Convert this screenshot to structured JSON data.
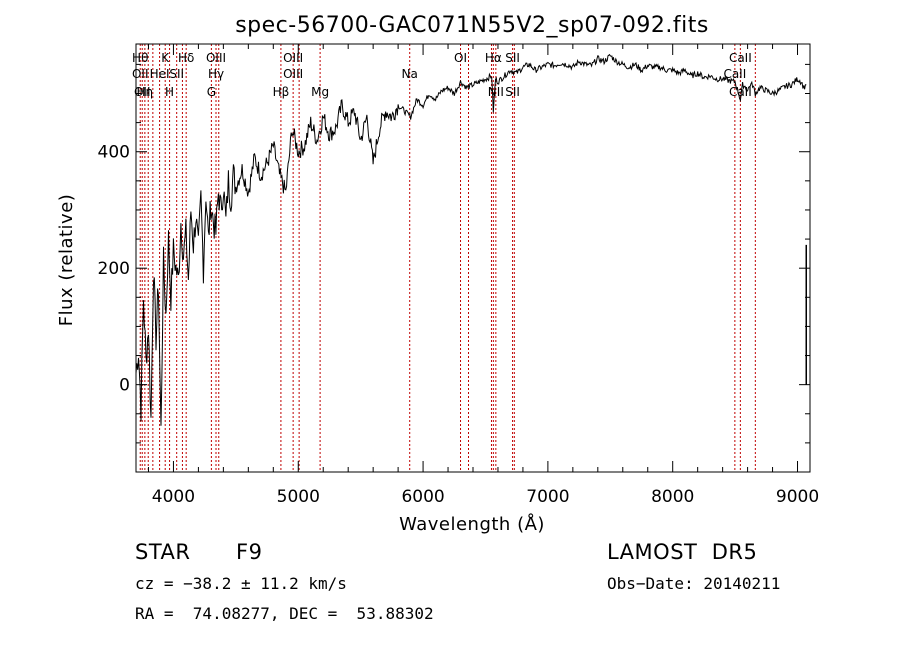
{
  "chart_data": {
    "type": "line",
    "title": "spec-56700-GAC071N55V2_sp07-092.fits",
    "xlabel": "Wavelength (Å)",
    "ylabel": "Flux (relative)",
    "xlim": [
      3700,
      9100
    ],
    "ylim": [
      -150,
      585
    ],
    "xticks": [
      4000,
      5000,
      6000,
      7000,
      8000,
      9000
    ],
    "yticks": [
      0,
      200,
      400
    ],
    "grid": false,
    "series": [
      {
        "x": [
          3700,
          3720,
          3740,
          3760,
          3780,
          3800,
          3820,
          3840,
          3860,
          3880,
          3900,
          3920,
          3940,
          3960,
          3980,
          4000,
          4020,
          4040,
          4060,
          4080,
          4100,
          4120,
          4140,
          4160,
          4180,
          4200,
          4220,
          4240,
          4260,
          4280,
          4300,
          4320,
          4340,
          4360,
          4380,
          4400,
          4420,
          4440,
          4460,
          4480,
          4500,
          4550,
          4600,
          4650,
          4700,
          4750,
          4800,
          4850,
          4900,
          4950,
          5000,
          5050,
          5100,
          5150,
          5200,
          5250,
          5300,
          5350,
          5400,
          5450,
          5500,
          5550,
          5600,
          5650,
          5700,
          5750,
          5800,
          5850,
          5900,
          5950,
          6000,
          6050,
          6100,
          6150,
          6200,
          6250,
          6300,
          6350,
          6400,
          6450,
          6500,
          6550,
          6563,
          6580,
          6600,
          6650,
          6700,
          6750,
          6800,
          6850,
          6900,
          6950,
          7000,
          7050,
          7100,
          7150,
          7200,
          7250,
          7300,
          7350,
          7400,
          7450,
          7500,
          7550,
          7600,
          7650,
          7700,
          7750,
          7800,
          7850,
          7900,
          7950,
          8000,
          8050,
          8100,
          8150,
          8200,
          8250,
          8300,
          8350,
          8400,
          8450,
          8500,
          8542,
          8560,
          8580,
          8600,
          8620,
          8640,
          8662,
          8700,
          8750,
          8800,
          8850,
          8900,
          8950,
          9000,
          9030,
          9050,
          9070
        ],
        "values": [
          20,
          60,
          -40,
          150,
          40,
          100,
          -60,
          200,
          80,
          170,
          -80,
          210,
          120,
          250,
          150,
          230,
          200,
          180,
          280,
          220,
          260,
          180,
          300,
          240,
          290,
          230,
          320,
          200,
          330,
          250,
          310,
          280,
          260,
          330,
          300,
          340,
          280,
          350,
          320,
          360,
          340,
          370,
          330,
          390,
          360,
          380,
          410,
          360,
          330,
          440,
          400,
          410,
          450,
          420,
          460,
          430,
          440,
          480,
          450,
          470,
          420,
          460,
          380,
          440,
          470,
          460,
          480,
          470,
          460,
          490,
          480,
          500,
          490,
          505,
          510,
          500,
          520,
          510,
          515,
          520,
          525,
          530,
          470,
          525,
          520,
          530,
          540,
          535,
          545,
          550,
          540,
          545,
          550,
          548,
          552,
          550,
          545,
          555,
          550,
          548,
          560,
          555,
          565,
          555,
          550,
          545,
          550,
          540,
          548,
          545,
          545,
          540,
          540,
          535,
          540,
          530,
          535,
          528,
          530,
          525,
          525,
          522,
          520,
          490,
          515,
          512,
          505,
          515,
          515,
          500,
          510,
          505,
          500,
          505,
          512,
          515,
          525,
          520,
          510,
          515
        ]
      }
    ],
    "lines": [
      {
        "x": 3734,
        "top": "Hθ",
        "mid": "OII"
      },
      {
        "x": 3750,
        "top": "",
        "mid": "",
        "low": "OII"
      },
      {
        "x": 3771,
        "top": "",
        "mid": "",
        "low": "Hη"
      },
      {
        "x": 3798,
        "top": "",
        "mid": "",
        "low": ""
      },
      {
        "x": 3835,
        "top": "",
        "mid": "",
        "low": ""
      },
      {
        "x": 3889,
        "top": "",
        "mid": "HeI"
      },
      {
        "x": 3934,
        "top": "K",
        "mid": ""
      },
      {
        "x": 3969,
        "top": "",
        "mid": "",
        "low": "H"
      },
      {
        "x": 4026,
        "top": "",
        "mid": "SII"
      },
      {
        "x": 4072,
        "top": "",
        "mid": ""
      },
      {
        "x": 4102,
        "top": "Hδ",
        "mid": ""
      },
      {
        "x": 4304,
        "top": "",
        "mid": "",
        "low": "G"
      },
      {
        "x": 4341,
        "top": "OIII",
        "mid": "Hγ"
      },
      {
        "x": 4363,
        "top": "",
        "mid": ""
      },
      {
        "x": 4861,
        "top": "",
        "mid": "",
        "low": "Hβ"
      },
      {
        "x": 4959,
        "top": "OIII",
        "mid": "OIII"
      },
      {
        "x": 5007,
        "top": "",
        "mid": ""
      },
      {
        "x": 5175,
        "top": "",
        "mid": "",
        "low": "Mg"
      },
      {
        "x": 5893,
        "top": "",
        "mid": "Na"
      },
      {
        "x": 6300,
        "top": "OI",
        "mid": ""
      },
      {
        "x": 6364,
        "top": "",
        "mid": ""
      },
      {
        "x": 6548,
        "top": "",
        "mid": ""
      },
      {
        "x": 6563,
        "top": "Hα",
        "mid": ""
      },
      {
        "x": 6583,
        "top": "",
        "mid": "",
        "low": "NII"
      },
      {
        "x": 6717,
        "top": "SII",
        "mid": "",
        "low": "SII"
      },
      {
        "x": 6731,
        "top": "",
        "mid": ""
      },
      {
        "x": 8498,
        "top": "",
        "mid": "CaII"
      },
      {
        "x": 8542,
        "top": "CaII",
        "mid": "",
        "low": "CaII"
      },
      {
        "x": 8662,
        "top": "",
        "mid": ""
      }
    ]
  },
  "info": {
    "object_class": "STAR",
    "subclass": "F9",
    "survey": "LAMOST  DR5",
    "cz": "cz = −38.2 ± 11.2 km/s",
    "obs_date": "Obs−Date: 20140211",
    "coords": "RA =  74.08277, DEC =  53.88302"
  }
}
